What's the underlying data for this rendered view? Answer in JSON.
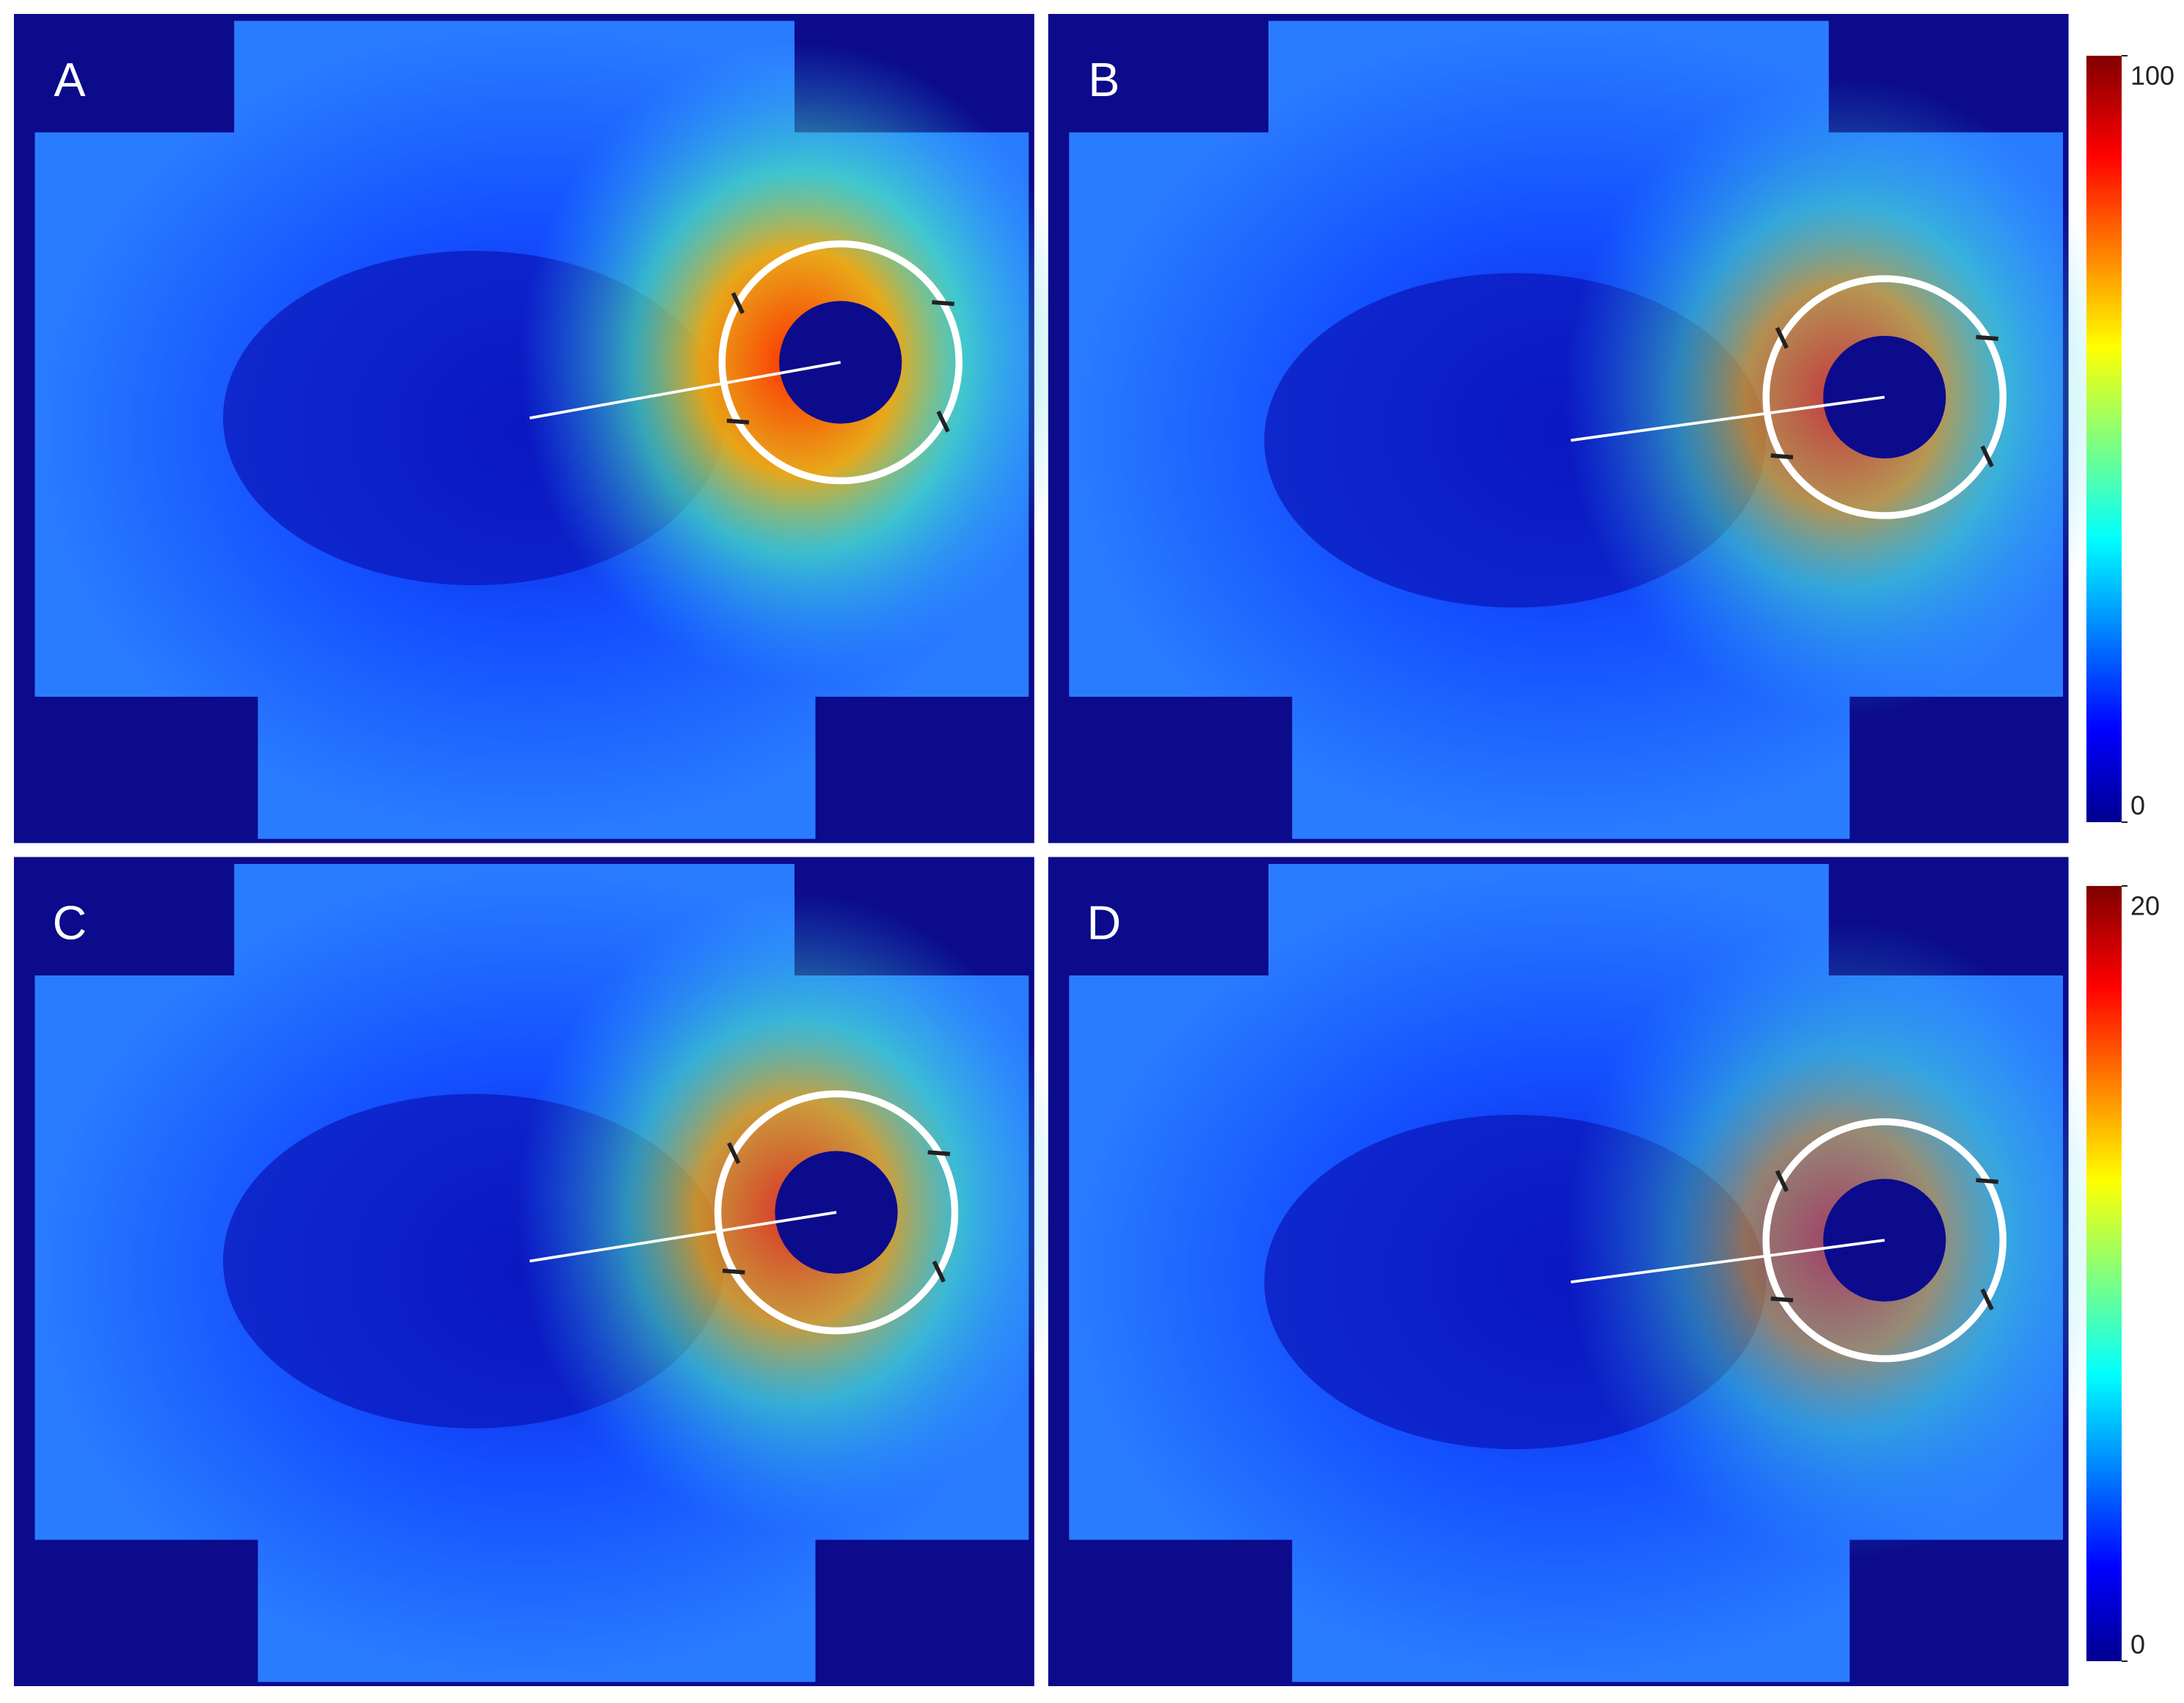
{
  "panels": [
    {
      "label": "A"
    },
    {
      "label": "B"
    },
    {
      "label": "C"
    },
    {
      "label": "D"
    }
  ],
  "colorbars": [
    {
      "lim": [
        0,
        100
      ],
      "ticks": [
        0,
        100
      ]
    },
    {
      "lim": [
        0,
        20
      ],
      "ticks": [
        0,
        20
      ]
    }
  ]
}
